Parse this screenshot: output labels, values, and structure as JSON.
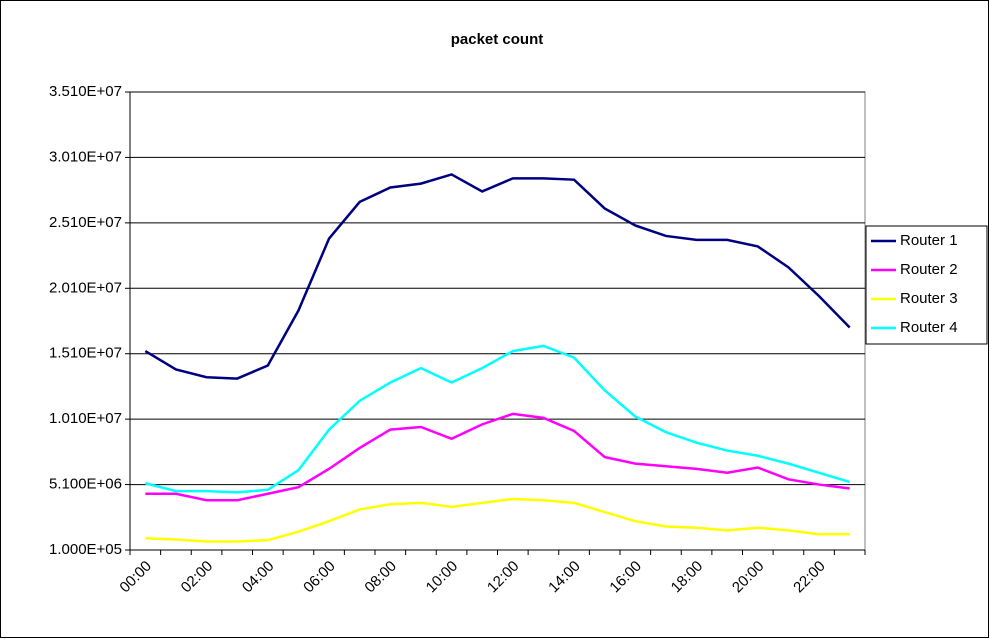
{
  "chart_data": {
    "type": "line",
    "title": "packet count",
    "categories": [
      "00:00",
      null,
      "02:00",
      null,
      "04:00",
      null,
      "06:00",
      null,
      "08:00",
      null,
      "10:00",
      null,
      "12:00",
      null,
      "14:00",
      null,
      "16:00",
      null,
      "18:00",
      null,
      "20:00",
      null,
      "22:00",
      null
    ],
    "series": [
      {
        "name": "Router 1",
        "color": "#000080",
        "values": [
          15300000,
          13900000,
          13300000,
          13200000,
          14200000,
          18400000,
          23900000,
          26700000,
          27800000,
          28100000,
          28800000,
          27500000,
          28500000,
          28500000,
          28400000,
          26200000,
          24900000,
          24100000,
          23800000,
          23800000,
          23300000,
          21700000,
          19500000,
          17100000
        ]
      },
      {
        "name": "Router 2",
        "color": "#ff00ff",
        "values": [
          4400000,
          4400000,
          3900000,
          3900000,
          4400000,
          4900000,
          6300000,
          7900000,
          9300000,
          9500000,
          8600000,
          9700000,
          10500000,
          10200000,
          9200000,
          7200000,
          6700000,
          6500000,
          6300000,
          6000000,
          6400000,
          5500000,
          5100000,
          4800000
        ]
      },
      {
        "name": "Router 3",
        "color": "#ffff00",
        "values": [
          1000000,
          900000,
          750000,
          750000,
          850000,
          1500000,
          2300000,
          3200000,
          3600000,
          3700000,
          3400000,
          3700000,
          4000000,
          3900000,
          3700000,
          3000000,
          2300000,
          1900000,
          1800000,
          1600000,
          1800000,
          1600000,
          1300000,
          1300000
        ]
      },
      {
        "name": "Router 4",
        "color": "#00ffff",
        "values": [
          5200000,
          4600000,
          4600000,
          4500000,
          4700000,
          6200000,
          9300000,
          11500000,
          12900000,
          14000000,
          12900000,
          14000000,
          15300000,
          15700000,
          14800000,
          12300000,
          10300000,
          9100000,
          8300000,
          7700000,
          7300000,
          6700000,
          6000000,
          5300000
        ]
      }
    ],
    "ylim": [
      100000,
      35100000
    ],
    "yticks": [
      {
        "value": 100000,
        "label": "1.000E+05"
      },
      {
        "value": 5100000,
        "label": "5.100E+06"
      },
      {
        "value": 10100000,
        "label": "1.010E+07"
      },
      {
        "value": 15100000,
        "label": "1.510E+07"
      },
      {
        "value": 20100000,
        "label": "2.010E+07"
      },
      {
        "value": 25100000,
        "label": "2.510E+07"
      },
      {
        "value": 30100000,
        "label": "3.010E+07"
      },
      {
        "value": 35100000,
        "label": "3.510E+07"
      }
    ],
    "grid": true,
    "legend": "right"
  }
}
